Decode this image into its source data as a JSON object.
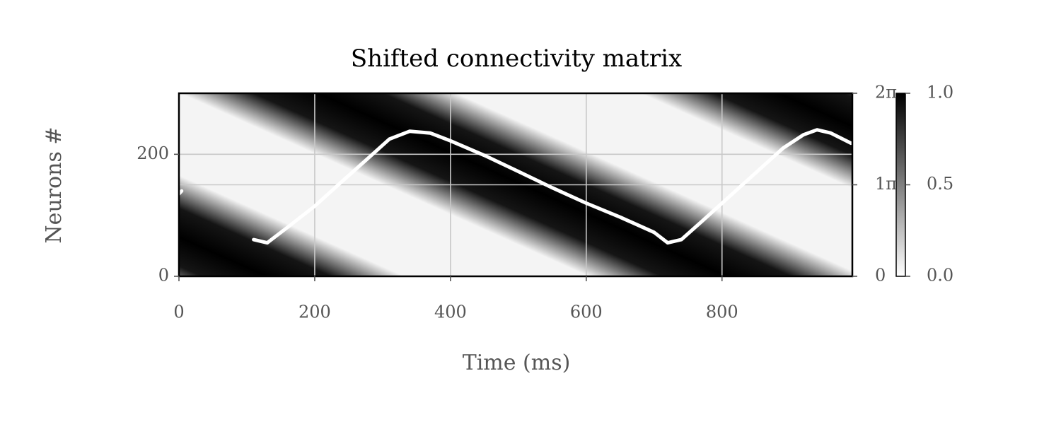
{
  "chart_data": {
    "type": "line",
    "title": "Shifted connectivity matrix",
    "xlabel": "Time (ms)",
    "ylabel": "Neurons #",
    "x": [
      0,
      4,
      60,
      110,
      130,
      160,
      200,
      240,
      280,
      310,
      340,
      370,
      400,
      450,
      500,
      550,
      600,
      650,
      700,
      720,
      740,
      770,
      810,
      850,
      890,
      920,
      940,
      960,
      990
    ],
    "series": [
      {
        "color": "#ffffff",
        "axis": "y2",
        "values": [
          2.83,
          2.93,
          null,
          1.26,
          1.15,
          1.68,
          2.41,
          3.25,
          4.08,
          4.71,
          4.98,
          4.92,
          4.65,
          4.15,
          3.6,
          3.04,
          2.51,
          2.03,
          1.51,
          1.15,
          1.26,
          1.88,
          2.72,
          3.56,
          4.4,
          4.86,
          5.03,
          4.92,
          4.57
        ]
      }
    ],
    "xlim": [
      0,
      992
    ],
    "xticks": [
      0,
      200,
      400,
      600,
      800
    ],
    "ylim": [
      0,
      300
    ],
    "yticks": [
      0,
      200
    ],
    "y2lim": [
      0,
      6.2832
    ],
    "y2ticks": [
      0,
      {
        "value": 3.1416,
        "label": "1π"
      },
      {
        "value": 6.2832,
        "label": "2π"
      }
    ],
    "grid": true,
    "colorbar": {
      "lim": [
        0,
        1
      ],
      "colors": [
        "#ffffff",
        "#000000"
      ],
      "ticks": [
        {
          "value": 0,
          "label": "0.0"
        },
        {
          "value": 0.5,
          "label": "0.5"
        },
        {
          "value": 1,
          "label": "1.0"
        }
      ]
    }
  }
}
